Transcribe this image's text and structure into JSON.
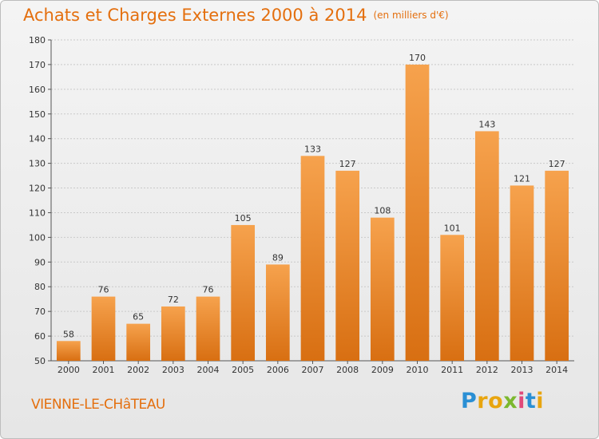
{
  "chart_data": {
    "type": "bar",
    "title": "Achats et Charges Externes 2000 à 2014",
    "subtitle": "(en milliers d'€)",
    "categories": [
      "2000",
      "2001",
      "2002",
      "2003",
      "2004",
      "2005",
      "2006",
      "2007",
      "2008",
      "2009",
      "2010",
      "2011",
      "2012",
      "2013",
      "2014"
    ],
    "values": [
      58,
      76,
      65,
      72,
      76,
      105,
      89,
      133,
      127,
      108,
      170,
      101,
      143,
      121,
      127
    ],
    "ylim": [
      50,
      180
    ],
    "yticks": [
      50,
      60,
      70,
      80,
      90,
      100,
      110,
      120,
      130,
      140,
      150,
      160,
      170,
      180
    ],
    "grid": true,
    "bar_color_light": "#f6a24d",
    "bar_color_dark": "#d86f12"
  },
  "location": "VIENNE-LE-CHâTEAU",
  "brand": {
    "letters": [
      "P",
      "r",
      "o",
      "x",
      "i",
      "t",
      "i"
    ],
    "colors": [
      "#2a8fd4",
      "#e8a50f",
      "#e8a50f",
      "#7cb82f",
      "#e04a7a",
      "#2a8fd4",
      "#e8a50f"
    ]
  }
}
